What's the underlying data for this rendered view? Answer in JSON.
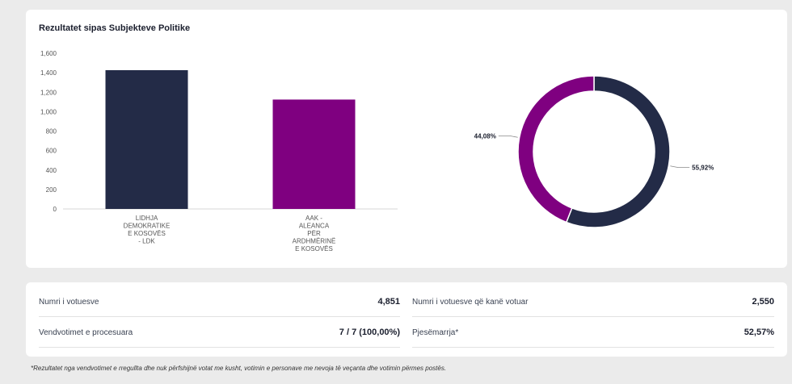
{
  "chart_card": {
    "title": "Rezultatet sipas Subjekteve Politike"
  },
  "chart_data": [
    {
      "type": "bar",
      "categories": [
        [
          "LIDHJA",
          "DEMOKRATIKE",
          "E KOSOVËS",
          "- LDK"
        ],
        [
          "AAK -",
          "ALEANCA",
          "PËR",
          "ARDHMËRINË",
          "E KOSOVËS"
        ]
      ],
      "values": [
        1426,
        1124
      ],
      "colors": [
        "#232b47",
        "#7f0080"
      ],
      "ylim": [
        0,
        1600
      ],
      "yticks": [
        "0",
        "200",
        "400",
        "600",
        "800",
        "1,000",
        "1,200",
        "1,400",
        "1,600"
      ],
      "grid": false
    },
    {
      "type": "pie",
      "variant": "donut",
      "slices": [
        {
          "label": "55,92%",
          "value": 55.92,
          "color": "#232b47"
        },
        {
          "label": "44,08%",
          "value": 44.08,
          "color": "#7f0080"
        }
      ]
    }
  ],
  "stats": {
    "registered_label": "Numri i votuesve",
    "registered_value": "4,851",
    "voted_label": "Numri i votuesve që kanë votuar",
    "voted_value": "2,550",
    "stations_label": "Vendvotimet e procesuara",
    "stations_value": "7 / 7 (100,00%)",
    "turnout_label": "Pjesëmarrja*",
    "turnout_value": "52,57%"
  },
  "footnote": "*Rezultatet nga vendvotimet e rregullta dhe nuk përfshijnë votat me kusht, votimin e personave me nevoja të veçanta dhe votimin përmes postës."
}
